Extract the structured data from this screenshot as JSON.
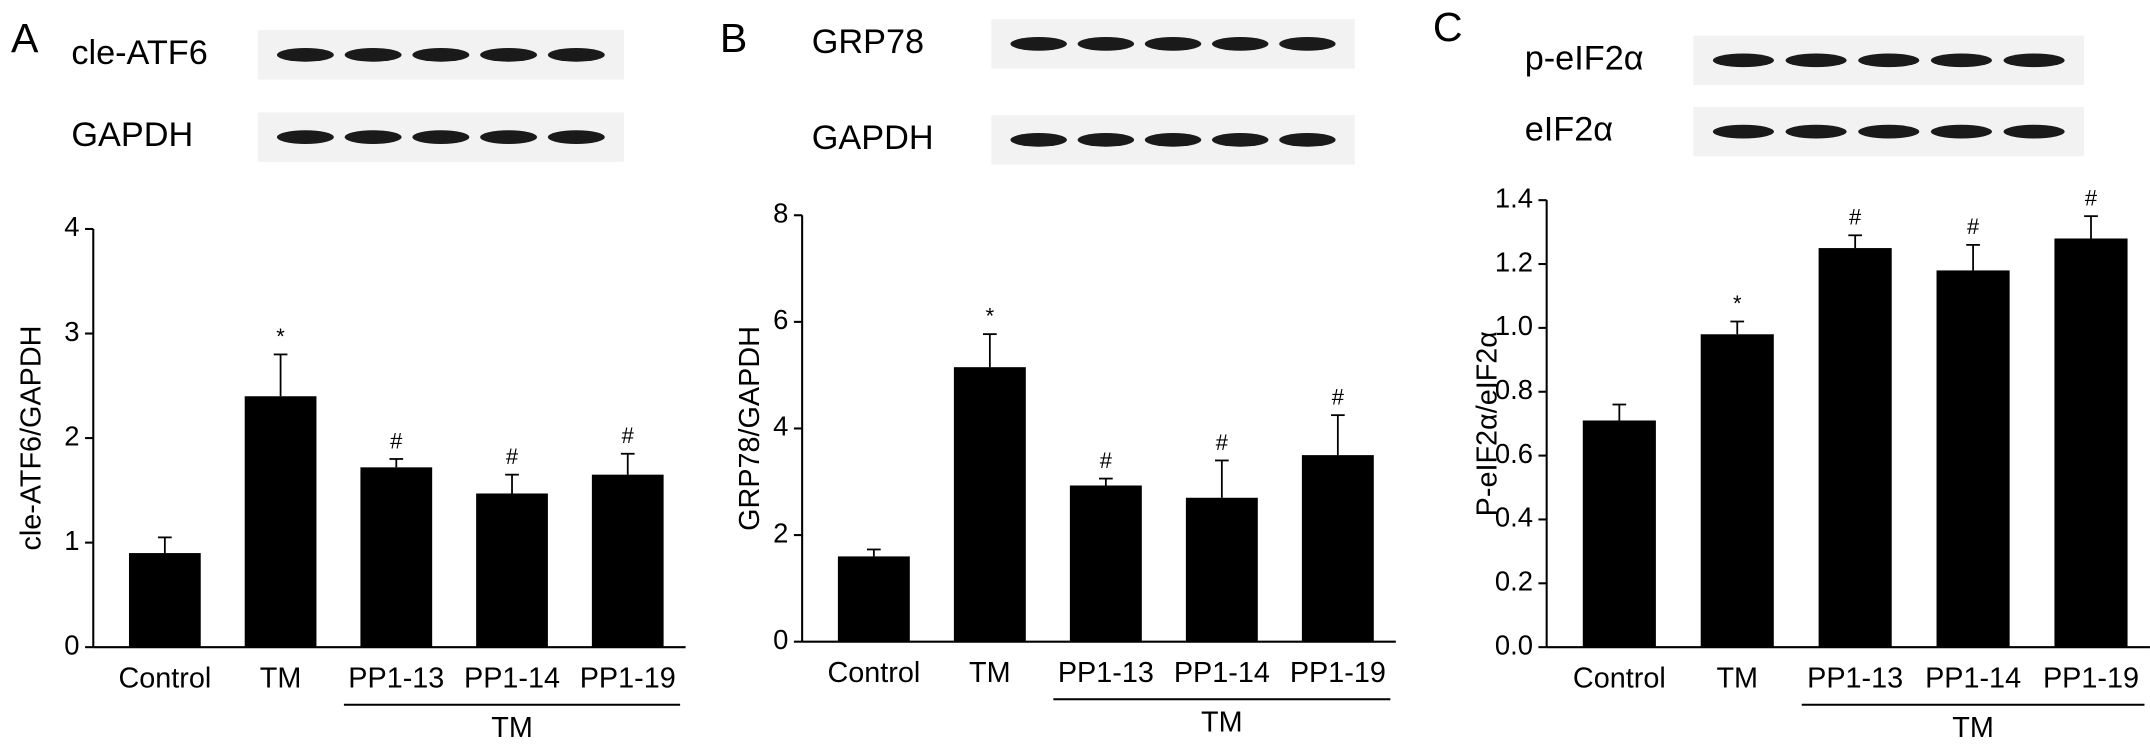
{
  "chart_data": [
    {
      "type": "bar",
      "panel": "A",
      "blots": [
        "cle-ATF6",
        "GAPDH"
      ],
      "ylabel": "cle-ATF6/GAPDH",
      "categories": [
        "Control",
        "TM",
        "PP1-13",
        "PP1-14",
        "PP1-19"
      ],
      "values": [
        0.9,
        2.4,
        1.72,
        1.47,
        1.65
      ],
      "errors": [
        0.15,
        0.4,
        0.08,
        0.18,
        0.2
      ],
      "markers": [
        null,
        "*",
        "#",
        "#",
        "#"
      ],
      "group_label": "TM",
      "group_span": [
        2,
        4
      ],
      "color": "#000000",
      "ylim": [
        0,
        4
      ],
      "yticks": [
        0,
        1,
        2,
        3,
        4
      ]
    },
    {
      "type": "bar",
      "panel": "B",
      "blots": [
        "GRP78",
        "GAPDH"
      ],
      "ylabel": "GRP78/GAPDH",
      "categories": [
        "Control",
        "TM",
        "PP1-13",
        "PP1-14",
        "PP1-19"
      ],
      "values": [
        1.6,
        5.15,
        2.93,
        2.7,
        3.5
      ],
      "errors": [
        0.13,
        0.62,
        0.13,
        0.7,
        0.75
      ],
      "markers": [
        null,
        "*",
        "#",
        "#",
        "#"
      ],
      "group_label": "TM",
      "group_span": [
        2,
        4
      ],
      "color": "#000000",
      "ylim": [
        0,
        8
      ],
      "yticks": [
        0,
        2,
        4,
        6,
        8
      ]
    },
    {
      "type": "bar",
      "panel": "C",
      "blots": [
        "p-eIF2α",
        "eIF2α"
      ],
      "ylabel": "P-eIF2α/eIF2α",
      "categories": [
        "Control",
        "TM",
        "PP1-13",
        "PP1-14",
        "PP1-19"
      ],
      "values": [
        0.71,
        0.98,
        1.25,
        1.18,
        1.28
      ],
      "errors": [
        0.05,
        0.04,
        0.04,
        0.08,
        0.07
      ],
      "markers": [
        null,
        "*",
        "#",
        "#",
        "#"
      ],
      "group_label": "TM",
      "group_span": [
        2,
        4
      ],
      "color": "#000000",
      "ylim": [
        0,
        1.4
      ],
      "yticks": [
        {
          "value": 0,
          "label": "0.0"
        },
        0.2,
        0.4,
        0.6,
        0.8,
        {
          "value": 1,
          "label": "1.0"
        },
        1.2,
        1.4
      ]
    }
  ]
}
